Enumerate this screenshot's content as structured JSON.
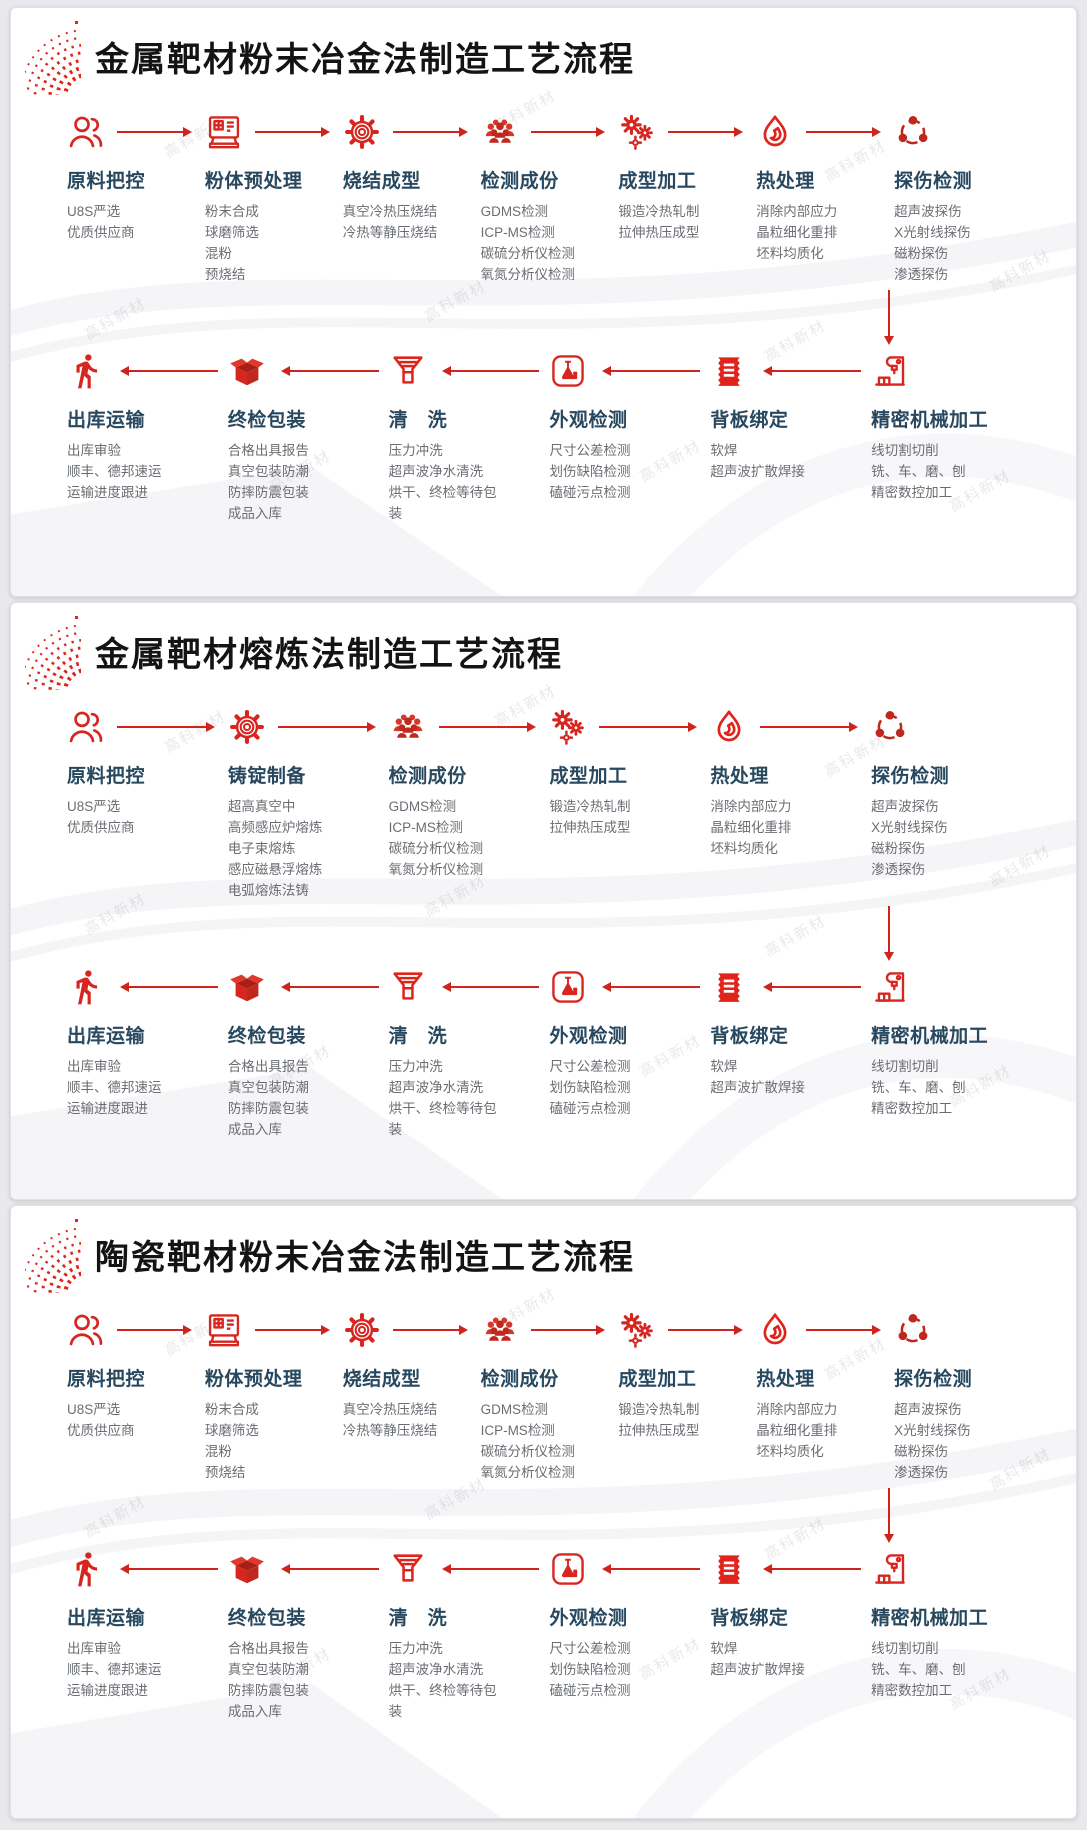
{
  "decor": {
    "watermark": "高科新材"
  },
  "colors": {
    "accent_red": "#cf241c",
    "icon_red": "#d7261f",
    "icon_dark_red": "#c0281e",
    "section_title": "#141414",
    "step_title_blue": "#27485f",
    "detail_gray": "#6a6e73",
    "page_bg": "#e9e9ed",
    "card_bg": "#ffffff"
  },
  "sections": [
    {
      "title": "金属靶材粉末冶金法制造工艺流程",
      "row1": [
        {
          "icon": "person-icon",
          "title": "原料把控",
          "details": [
            "U8S严选",
            "优质供应商"
          ]
        },
        {
          "icon": "mill-machine-icon",
          "title": "粉体预处理",
          "details": [
            "粉末合成",
            "球磨筛选",
            "混粉",
            "预烧结"
          ]
        },
        {
          "icon": "spiral-gear-icon",
          "title": "烧结成型",
          "details": [
            "真空冷热压烧结",
            "冷热等静压烧结"
          ]
        },
        {
          "icon": "crowd-icon",
          "title": "检测成份",
          "details": [
            "GDMS检测",
            "ICP-MS检测",
            "碳硫分析仪检测",
            "氧氮分析仪检测"
          ]
        },
        {
          "icon": "gears-icon",
          "title": "成型加工",
          "details": [
            "锻造冷热轧制",
            "拉伸热压成型"
          ]
        },
        {
          "icon": "flame-icon",
          "title": "热处理",
          "details": [
            "消除内部应力",
            "晶粒细化重排",
            "坯料均质化"
          ]
        },
        {
          "icon": "share-icon",
          "title": "探伤检测",
          "details": [
            "超声波探伤",
            "X光射线探伤",
            "磁粉探伤",
            "渗透探伤"
          ]
        }
      ],
      "row2": [
        {
          "icon": "walking-person-icon",
          "title": "出库运输",
          "details": [
            "出库审验",
            "顺丰、德邦速运",
            "运输进度跟进"
          ]
        },
        {
          "icon": "open-box-icon",
          "title": "终检包装",
          "details": [
            "合格出具报告",
            "真空包装防潮",
            "防摔防震包装",
            "成品入库"
          ]
        },
        {
          "icon": "funnel-icon",
          "title": "清　洗",
          "details": [
            "压力冲洗",
            "超声波净水清洗",
            "烘干、终检等待包装"
          ]
        },
        {
          "icon": "flask-badge-icon",
          "title": "外观检测",
          "details": [
            "尺寸公差检测",
            "划伤缺陷检测",
            "磕碰污点检测"
          ]
        },
        {
          "icon": "ticket-icon",
          "title": "背板绑定",
          "details": [
            "软焊",
            "超声波扩散焊接"
          ]
        },
        {
          "icon": "cnc-machine-icon",
          "title": "精密机械加工",
          "details": [
            "线切割切削",
            "铣、车、磨、刨",
            "精密数控加工"
          ]
        }
      ]
    },
    {
      "title": "金属靶材熔炼法制造工艺流程",
      "row1": [
        {
          "icon": "person-icon",
          "title": "原料把控",
          "details": [
            "U8S严选",
            "优质供应商"
          ]
        },
        {
          "icon": "spiral-gear-icon",
          "title": "铸锭制备",
          "details": [
            "超高真空中",
            "高频感应炉熔炼",
            "电子束熔炼",
            "感应磁悬浮熔炼",
            "电弧熔炼法铸"
          ]
        },
        {
          "icon": "crowd-icon",
          "title": "检测成份",
          "details": [
            "GDMS检测",
            "ICP-MS检测",
            "碳硫分析仪检测",
            "氧氮分析仪检测"
          ]
        },
        {
          "icon": "gears-icon",
          "title": "成型加工",
          "details": [
            "锻造冷热轧制",
            "拉伸热压成型"
          ]
        },
        {
          "icon": "flame-icon",
          "title": "热处理",
          "details": [
            "消除内部应力",
            "晶粒细化重排",
            "坯料均质化"
          ]
        },
        {
          "icon": "share-icon",
          "title": "探伤检测",
          "details": [
            "超声波探伤",
            "X光射线探伤",
            "磁粉探伤",
            "渗透探伤"
          ]
        }
      ],
      "row2": [
        {
          "icon": "walking-person-icon",
          "title": "出库运输",
          "details": [
            "出库审验",
            "顺丰、德邦速运",
            "运输进度跟进"
          ]
        },
        {
          "icon": "open-box-icon",
          "title": "终检包装",
          "details": [
            "合格出具报告",
            "真空包装防潮",
            "防摔防震包装",
            "成品入库"
          ]
        },
        {
          "icon": "funnel-icon",
          "title": "清　洗",
          "details": [
            "压力冲洗",
            "超声波净水清洗",
            "烘干、终检等待包装"
          ]
        },
        {
          "icon": "flask-badge-icon",
          "title": "外观检测",
          "details": [
            "尺寸公差检测",
            "划伤缺陷检测",
            "磕碰污点检测"
          ]
        },
        {
          "icon": "ticket-icon",
          "title": "背板绑定",
          "details": [
            "软焊",
            "超声波扩散焊接"
          ]
        },
        {
          "icon": "cnc-machine-icon",
          "title": "精密机械加工",
          "details": [
            "线切割切削",
            "铣、车、磨、刨",
            "精密数控加工"
          ]
        }
      ]
    },
    {
      "title": "陶瓷靶材粉末冶金法制造工艺流程",
      "row1": [
        {
          "icon": "person-icon",
          "title": "原料把控",
          "details": [
            "U8S严选",
            "优质供应商"
          ]
        },
        {
          "icon": "mill-machine-icon",
          "title": "粉体预处理",
          "details": [
            "粉末合成",
            "球磨筛选",
            "混粉",
            "预烧结"
          ]
        },
        {
          "icon": "spiral-gear-icon",
          "title": "烧结成型",
          "details": [
            "真空冷热压烧结",
            "冷热等静压烧结"
          ]
        },
        {
          "icon": "crowd-icon",
          "title": "检测成份",
          "details": [
            "GDMS检测",
            "ICP-MS检测",
            "碳硫分析仪检测",
            "氧氮分析仪检测"
          ]
        },
        {
          "icon": "gears-icon",
          "title": "成型加工",
          "details": [
            "锻造冷热轧制",
            "拉伸热压成型"
          ]
        },
        {
          "icon": "flame-icon",
          "title": "热处理",
          "details": [
            "消除内部应力",
            "晶粒细化重排",
            "坯料均质化"
          ]
        },
        {
          "icon": "share-icon",
          "title": "探伤检测",
          "details": [
            "超声波探伤",
            "X光射线探伤",
            "磁粉探伤",
            "渗透探伤"
          ]
        }
      ],
      "row2": [
        {
          "icon": "walking-person-icon",
          "title": "出库运输",
          "details": [
            "出库审验",
            "顺丰、德邦速运",
            "运输进度跟进"
          ]
        },
        {
          "icon": "open-box-icon",
          "title": "终检包装",
          "details": [
            "合格出具报告",
            "真空包装防潮",
            "防摔防震包装",
            "成品入库"
          ]
        },
        {
          "icon": "funnel-icon",
          "title": "清　洗",
          "details": [
            "压力冲洗",
            "超声波净水清洗",
            "烘干、终检等待包装"
          ]
        },
        {
          "icon": "flask-badge-icon",
          "title": "外观检测",
          "details": [
            "尺寸公差检测",
            "划伤缺陷检测",
            "磕碰污点检测"
          ]
        },
        {
          "icon": "ticket-icon",
          "title": "背板绑定",
          "details": [
            "软焊",
            "超声波扩散焊接"
          ]
        },
        {
          "icon": "cnc-machine-icon",
          "title": "精密机械加工",
          "details": [
            "线切割切削",
            "铣、车、磨、刨",
            "精密数控加工"
          ]
        }
      ]
    }
  ]
}
